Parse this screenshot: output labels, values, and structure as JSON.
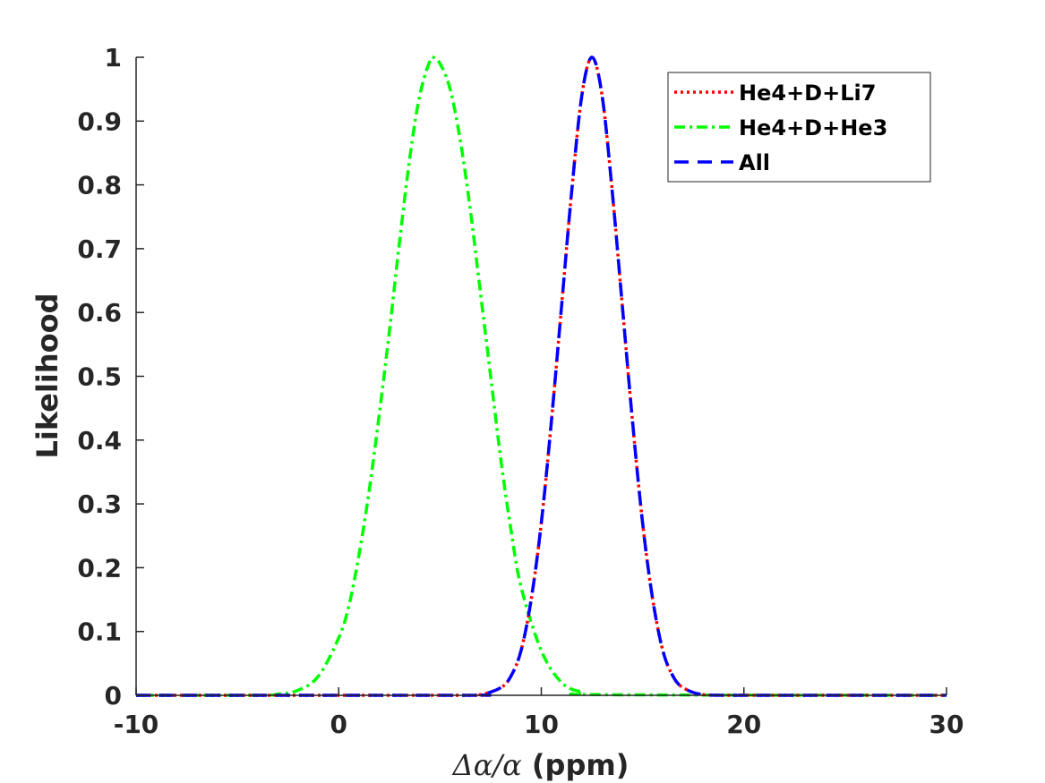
{
  "chart_data": {
    "type": "line",
    "xlabel": {
      "delta_symbol": "Δ",
      "alpha_symbol": "α",
      "slash": "/",
      "unit": " (ppm)"
    },
    "ylabel": "Likelihood",
    "xlim": [
      -10,
      30
    ],
    "ylim": [
      0,
      1
    ],
    "xticks": [
      -10,
      0,
      10,
      20,
      30
    ],
    "xtick_labels": [
      "-10",
      "0",
      "10",
      "20",
      "30"
    ],
    "yticks": [
      0,
      0.1,
      0.2,
      0.3,
      0.4,
      0.5,
      0.6,
      0.7,
      0.8,
      0.9,
      1
    ],
    "ytick_labels": [
      "0",
      "0.1",
      "0.2",
      "0.3",
      "0.4",
      "0.5",
      "0.6",
      "0.7",
      "0.8",
      "0.9",
      "1"
    ],
    "grid": false,
    "legend_position": "top-right",
    "series": [
      {
        "name": "He4+D+Li7",
        "color": "#ff0000",
        "line_style": "dotted",
        "x": [
          -10,
          6,
          7,
          8,
          8.5,
          9,
          9.5,
          10,
          10.5,
          11,
          11.5,
          12,
          12.5,
          13,
          13.5,
          14,
          14.5,
          15,
          15.5,
          16,
          16.5,
          17,
          18,
          20,
          30
        ],
        "y": [
          0,
          0,
          0.001,
          0.012,
          0.03,
          0.07,
          0.15,
          0.27,
          0.43,
          0.61,
          0.79,
          0.94,
          1.0,
          0.94,
          0.79,
          0.61,
          0.43,
          0.27,
          0.15,
          0.07,
          0.03,
          0.012,
          0.001,
          0,
          0
        ]
      },
      {
        "name": "He4+D+He3",
        "color": "#00ff00",
        "line_style": "dashdot",
        "x": [
          -10,
          -4,
          -3,
          -2,
          -1,
          0,
          0.5,
          1,
          1.5,
          2,
          2.5,
          3,
          3.5,
          4,
          4.6,
          5,
          5.5,
          6,
          6.5,
          7,
          7.5,
          8,
          8.5,
          9,
          10,
          11,
          12,
          13,
          30
        ],
        "y": [
          0,
          0,
          0.002,
          0.008,
          0.03,
          0.09,
          0.14,
          0.22,
          0.32,
          0.44,
          0.57,
          0.71,
          0.84,
          0.94,
          1.0,
          0.99,
          0.95,
          0.87,
          0.76,
          0.63,
          0.5,
          0.37,
          0.26,
          0.17,
          0.07,
          0.02,
          0.005,
          0.001,
          0
        ]
      },
      {
        "name": "All",
        "color": "#0000ff",
        "line_style": "dashed",
        "x": [
          -10,
          6,
          7,
          8,
          8.5,
          9,
          9.5,
          10,
          10.5,
          11,
          11.5,
          12,
          12.5,
          13,
          13.5,
          14,
          14.5,
          15,
          15.5,
          16,
          16.5,
          17,
          18,
          20,
          30
        ],
        "y": [
          0,
          0,
          0.001,
          0.012,
          0.03,
          0.07,
          0.15,
          0.27,
          0.43,
          0.61,
          0.79,
          0.94,
          1.0,
          0.94,
          0.79,
          0.61,
          0.43,
          0.27,
          0.15,
          0.07,
          0.03,
          0.012,
          0.001,
          0,
          0
        ]
      }
    ]
  }
}
